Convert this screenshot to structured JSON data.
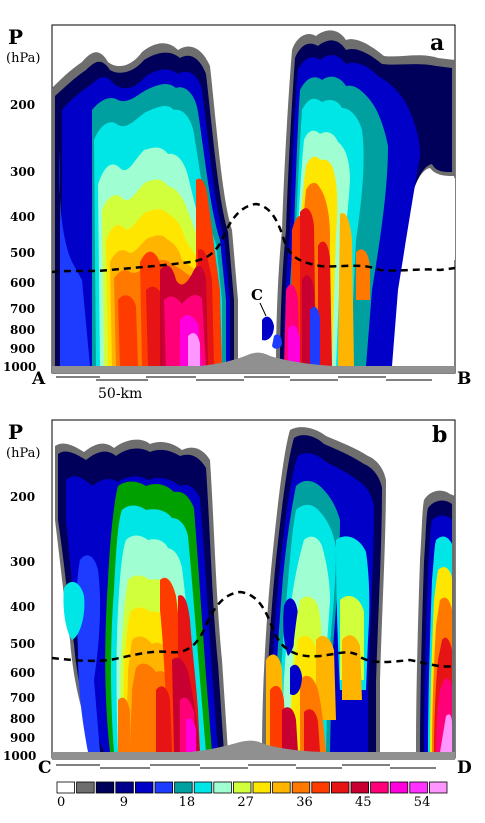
{
  "figure": {
    "panels": [
      {
        "label": "a",
        "ylabel_line1": "P",
        "ylabel_line2": "(hPa)",
        "left_end": "A",
        "right_end": "B",
        "mid_marker": "C",
        "scale_label": "50-km"
      },
      {
        "label": "b",
        "ylabel_line1": "P",
        "ylabel_line2": "(hPa)",
        "left_end": "C",
        "right_end": "D"
      }
    ],
    "pressure_ticks": [
      "200",
      "300",
      "400",
      "500",
      "600",
      "700",
      "800",
      "900",
      "1000"
    ],
    "colorbar": {
      "colors": [
        "#ffffff",
        "#6e6e6e",
        "#00005a",
        "#00008c",
        "#0000c8",
        "#1e3cff",
        "#00a0a0",
        "#00e6e6",
        "#a0ffd2",
        "#d2ff3c",
        "#ffe600",
        "#ffb400",
        "#ff7800",
        "#ff3c00",
        "#e61414",
        "#c80032",
        "#ff0078",
        "#ff00dc",
        "#ff32ff",
        "#ff96ff"
      ],
      "labels": [
        "0",
        "9",
        "18",
        "27",
        "36",
        "45",
        "54"
      ]
    }
  },
  "chart_data": [
    {
      "type": "heatmap",
      "panel": "a",
      "title": "",
      "ylabel": "P (hPa)",
      "yticks": [
        200,
        300,
        400,
        500,
        600,
        700,
        800,
        900,
        1000
      ],
      "y_scale": "log-pressure, inverted",
      "x_endpoints": [
        "A",
        "B"
      ],
      "colorbar_ticks": [
        0,
        9,
        18,
        27,
        36,
        45,
        54
      ]
    },
    {
      "type": "heatmap",
      "panel": "b",
      "title": "",
      "ylabel": "P (hPa)",
      "yticks": [
        200,
        300,
        400,
        500,
        600,
        700,
        800,
        900,
        1000
      ],
      "y_scale": "log-pressure, inverted",
      "x_endpoints": [
        "C",
        "D"
      ],
      "colorbar_ticks": [
        0,
        9,
        18,
        27,
        36,
        45,
        54
      ]
    }
  ]
}
